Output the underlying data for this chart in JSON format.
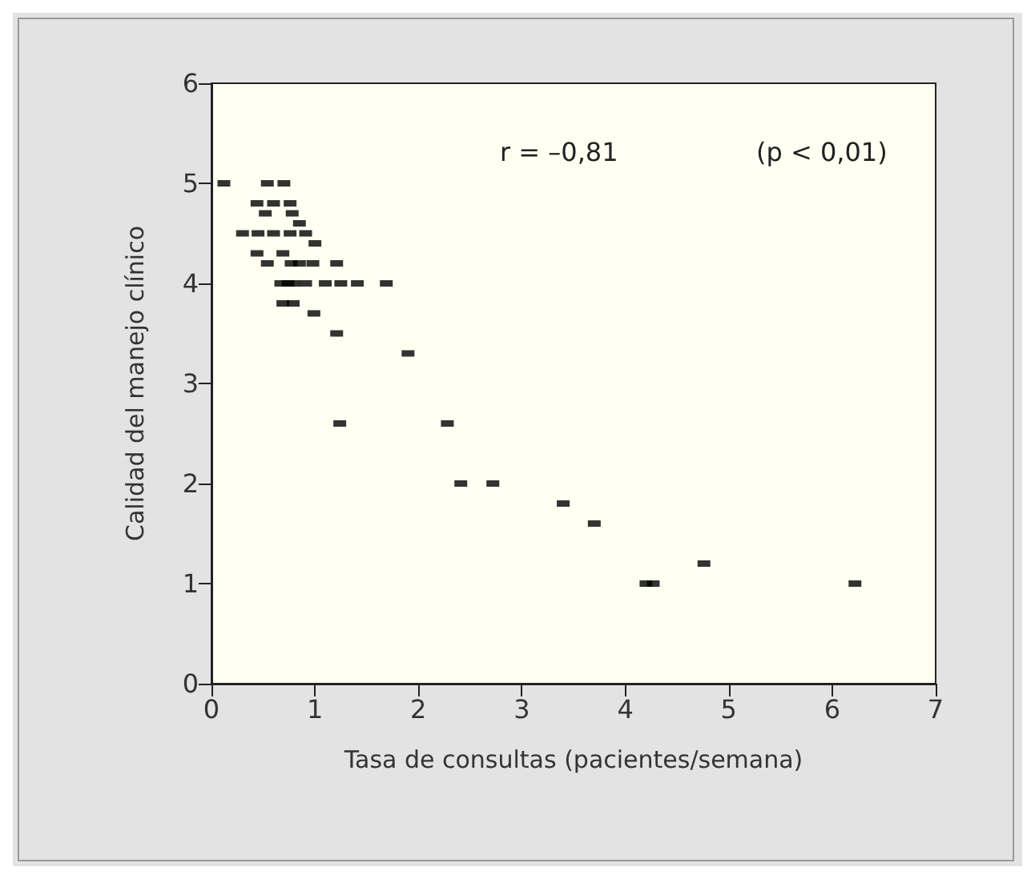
{
  "chart_data": {
    "type": "scatter",
    "xlabel": "Tasa de consultas (pacientes/semana)",
    "ylabel": "Calidad del manejo clínico",
    "annotations": [
      "r = –0,81",
      "(p < 0,01)"
    ],
    "x": [
      0.12,
      0.54,
      0.7,
      0.44,
      0.6,
      0.76,
      0.52,
      0.78,
      0.85,
      0.3,
      0.45,
      0.6,
      0.76,
      0.91,
      1.0,
      0.44,
      0.69,
      0.54,
      0.77,
      0.85,
      0.98,
      1.21,
      0.67,
      0.74,
      0.79,
      0.91,
      1.1,
      1.25,
      1.41,
      1.69,
      0.69,
      0.79,
      0.99,
      1.21,
      1.9,
      1.24,
      2.28,
      2.41,
      2.72,
      3.4,
      3.7,
      4.76,
      4.2,
      4.27,
      6.22
    ],
    "values": [
      5,
      5,
      5,
      4.8,
      4.8,
      4.8,
      4.7,
      4.7,
      4.6,
      4.5,
      4.5,
      4.5,
      4.5,
      4.5,
      4.4,
      4.3,
      4.3,
      4.2,
      4.2,
      4.2,
      4.2,
      4.2,
      4,
      4,
      4,
      4,
      4,
      4,
      4,
      4,
      3.8,
      3.8,
      3.7,
      3.5,
      3.3,
      2.6,
      2.6,
      2,
      2,
      1.8,
      1.6,
      1.2,
      1,
      1,
      1
    ],
    "color": "#000000",
    "marker": "square",
    "xlim": [
      0,
      7
    ],
    "xticks": [
      0,
      1,
      2,
      3,
      4,
      5,
      6,
      7
    ],
    "ylim": [
      0,
      6
    ],
    "yticks": [
      0,
      1,
      2,
      3,
      4,
      5,
      6
    ]
  }
}
